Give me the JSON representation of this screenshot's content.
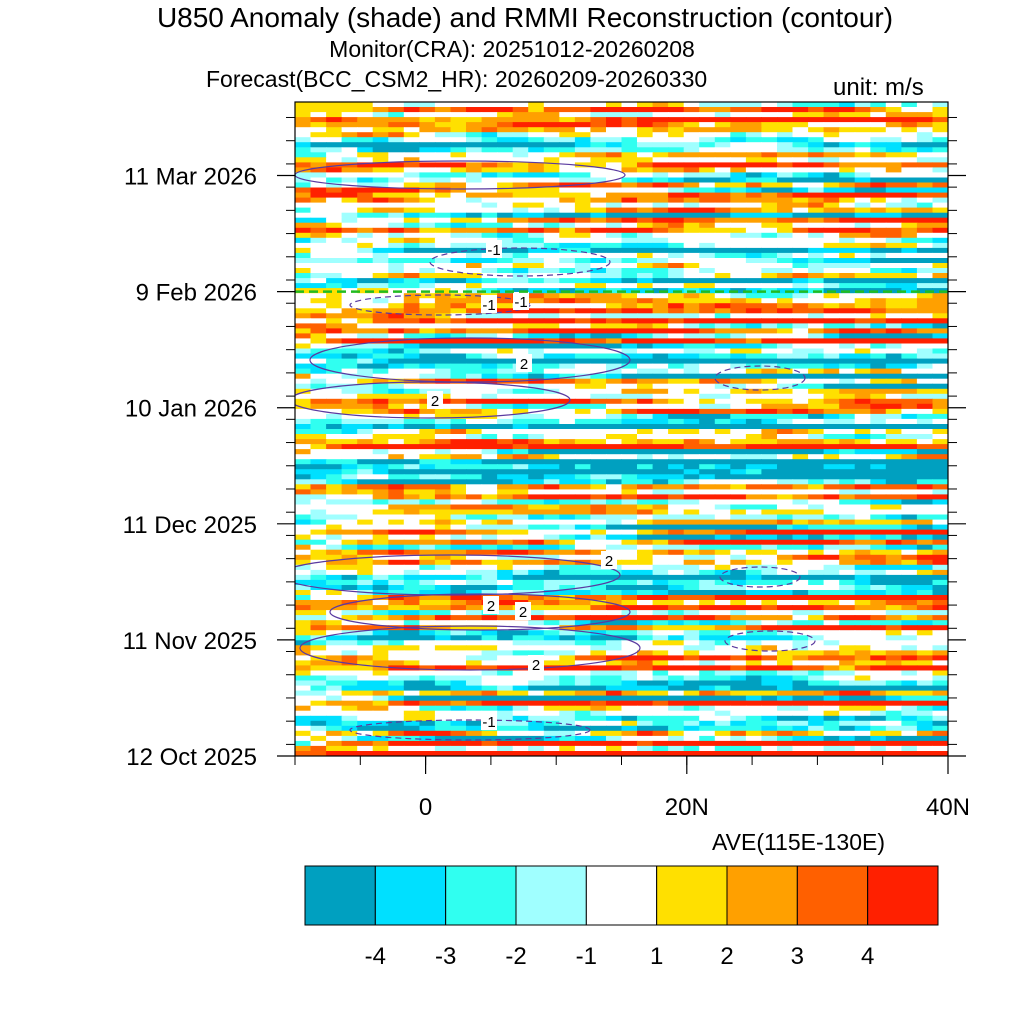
{
  "title": "U850 Anomaly (shade) and RMMI Reconstruction (contour)",
  "subtitle_monitor": "Monitor(CRA): 20251012-20260208",
  "subtitle_forecast": "Forecast(BCC_CSM2_HR): 20260209-20260330",
  "unit_label": "unit: m/s",
  "region_label": "AVE(115E-130E)",
  "chart_data": {
    "type": "heatmap",
    "x_axis": {
      "range": [
        -10,
        40
      ],
      "tick_values": [
        0,
        20,
        40
      ],
      "tick_labels": [
        "0",
        "20N",
        "40N"
      ]
    },
    "y_axis": {
      "range": [
        "2025-10-12",
        "2026-03-30"
      ],
      "tick_labels": [
        "12 Oct 2025",
        "11 Nov 2025",
        "11 Dec 2025",
        "10 Jan 2026",
        "9 Feb 2026",
        "11 Mar 2026"
      ]
    },
    "forecast_start": "2026-02-09",
    "contour_labels": [
      "-1",
      "-1",
      "-1",
      "2",
      "2",
      "2",
      "2",
      "2",
      "2",
      "-1"
    ],
    "colorbar": {
      "ticks": [
        "-4",
        "-3",
        "-2",
        "-1",
        "1",
        "2",
        "3",
        "4"
      ],
      "colors": [
        "#00a0c0",
        "#00e0ff",
        "#30fff0",
        "#a0ffff",
        "#ffffff",
        "#ffe000",
        "#ffa000",
        "#ff6000",
        "#ff2000"
      ]
    }
  }
}
